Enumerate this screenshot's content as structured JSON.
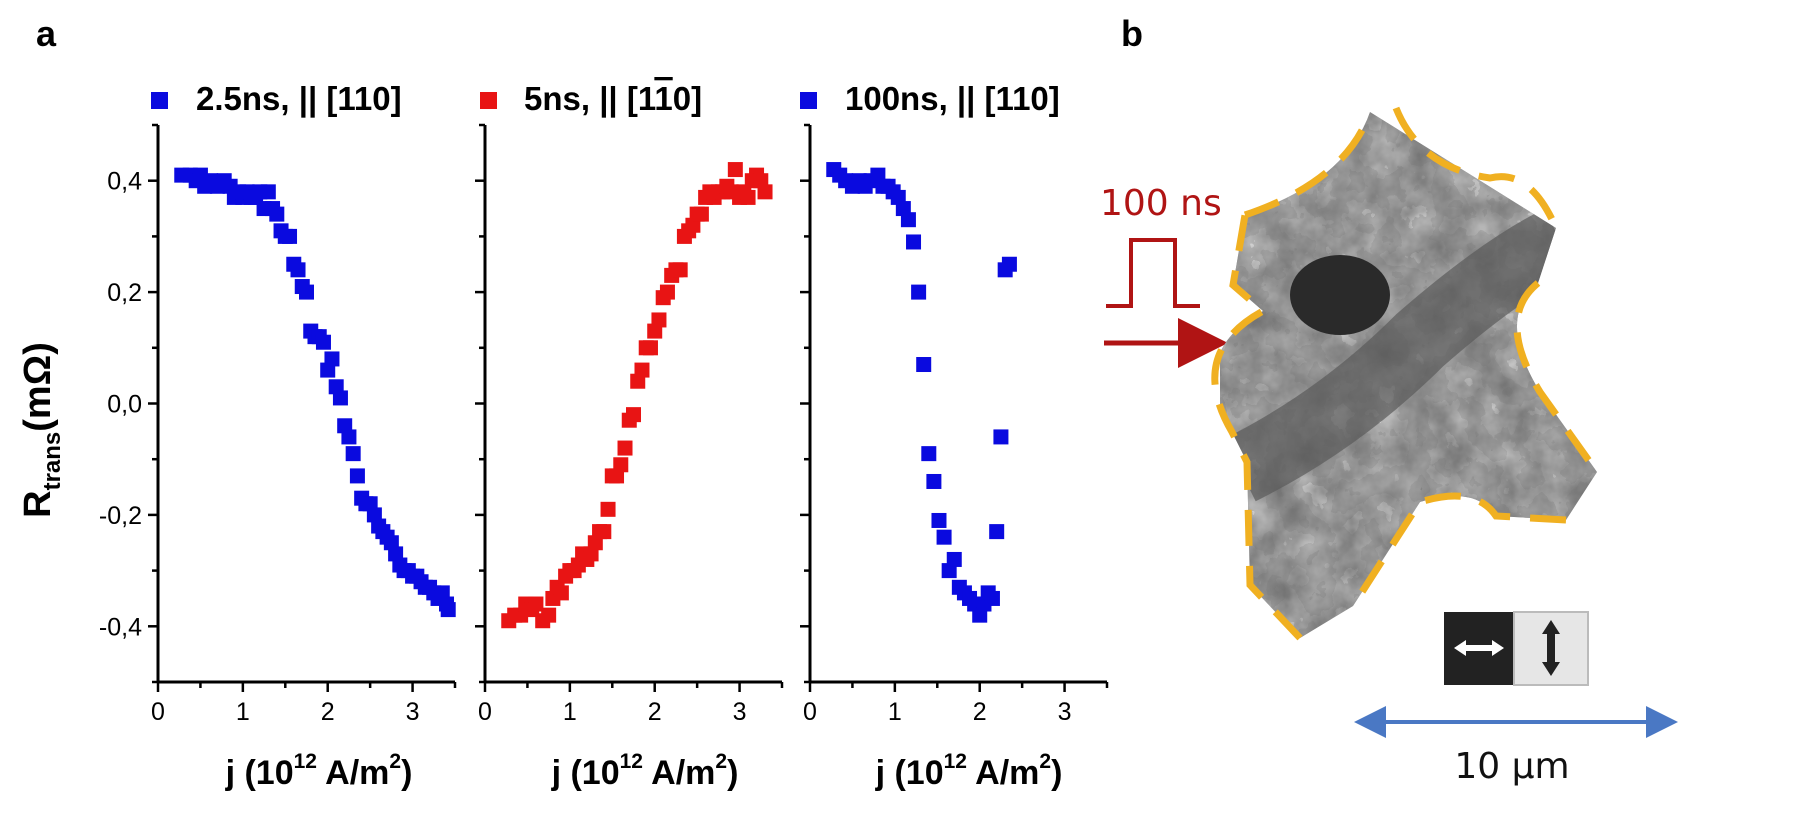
{
  "panel_a_label": "a",
  "panel_b_label": "b",
  "chart_data": {
    "type": "scatter",
    "ylabel": "R",
    "ylabel_subscript": "trans",
    "ylabel_unit": "(mΩ)",
    "ylim": [
      -0.5,
      0.5
    ],
    "yticks": [
      "0,4",
      "0,2",
      "0,0",
      "-0,2",
      "-0,4"
    ],
    "ytick_values": [
      0.4,
      0.2,
      0.0,
      -0.2,
      -0.4
    ],
    "xlim": [
      0,
      3.5
    ],
    "xticks": [
      "0",
      "1",
      "2",
      "3"
    ],
    "xtick_values": [
      0,
      1,
      2,
      3
    ],
    "grid": false,
    "panels": [
      {
        "name": "2.5ns, || [110]",
        "name_parts": [
          "2.5ns, || [110]"
        ],
        "color": "#0a0adf",
        "xlabel": {
          "a": "j (10",
          "sup": "12",
          "b": " A/m",
          "sup2": "2",
          "c": ")"
        },
        "x": [
          0.28,
          0.38,
          0.45,
          0.5,
          0.55,
          0.62,
          0.7,
          0.78,
          0.85,
          0.9,
          0.95,
          1.0,
          1.05,
          1.1,
          1.15,
          1.2,
          1.25,
          1.3,
          1.35,
          1.4,
          1.45,
          1.5,
          1.55,
          1.6,
          1.65,
          1.7,
          1.75,
          1.8,
          1.85,
          1.9,
          1.95,
          2.0,
          2.05,
          2.1,
          2.15,
          2.2,
          2.25,
          2.3,
          2.35,
          2.4,
          2.45,
          2.5,
          2.55,
          2.6,
          2.65,
          2.7,
          2.75,
          2.8,
          2.85,
          2.9,
          2.95,
          3.0,
          3.05,
          3.1,
          3.15,
          3.2,
          3.25,
          3.3,
          3.35,
          3.4,
          3.42
        ],
        "y": [
          0.41,
          0.41,
          0.4,
          0.41,
          0.39,
          0.4,
          0.39,
          0.4,
          0.39,
          0.37,
          0.38,
          0.37,
          0.38,
          0.37,
          0.37,
          0.38,
          0.35,
          0.38,
          0.35,
          0.34,
          0.31,
          0.3,
          0.3,
          0.25,
          0.24,
          0.21,
          0.2,
          0.13,
          0.12,
          0.12,
          0.11,
          0.06,
          0.08,
          0.03,
          0.01,
          -0.04,
          -0.06,
          -0.09,
          -0.13,
          -0.17,
          -0.18,
          -0.18,
          -0.2,
          -0.22,
          -0.23,
          -0.24,
          -0.25,
          -0.27,
          -0.29,
          -0.3,
          -0.3,
          -0.31,
          -0.31,
          -0.32,
          -0.33,
          -0.33,
          -0.34,
          -0.35,
          -0.34,
          -0.36,
          -0.37
        ]
      },
      {
        "name": "5ns, || [1",
        "name_bar": "1",
        "name_tail": "0]",
        "color": "#e81414",
        "xlabel": {
          "a": "j (10",
          "sup": "12",
          "b": " A/m",
          "sup2": "2",
          "c": ")"
        },
        "x": [
          0.28,
          0.35,
          0.42,
          0.48,
          0.55,
          0.6,
          0.68,
          0.75,
          0.8,
          0.85,
          0.9,
          0.95,
          1.0,
          1.05,
          1.1,
          1.15,
          1.2,
          1.25,
          1.3,
          1.35,
          1.4,
          1.45,
          1.5,
          1.55,
          1.6,
          1.65,
          1.7,
          1.75,
          1.8,
          1.85,
          1.9,
          1.95,
          2.0,
          2.05,
          2.1,
          2.15,
          2.2,
          2.25,
          2.3,
          2.35,
          2.4,
          2.45,
          2.5,
          2.55,
          2.6,
          2.65,
          2.7,
          2.75,
          2.8,
          2.85,
          2.9,
          2.95,
          3.0,
          3.05,
          3.1,
          3.15,
          3.2,
          3.25,
          3.3
        ],
        "y": [
          -0.39,
          -0.38,
          -0.38,
          -0.36,
          -0.37,
          -0.36,
          -0.39,
          -0.38,
          -0.35,
          -0.33,
          -0.34,
          -0.31,
          -0.3,
          -0.3,
          -0.29,
          -0.27,
          -0.28,
          -0.27,
          -0.25,
          -0.23,
          -0.23,
          -0.19,
          -0.13,
          -0.13,
          -0.11,
          -0.08,
          -0.03,
          -0.02,
          0.04,
          0.06,
          0.1,
          0.1,
          0.13,
          0.15,
          0.19,
          0.2,
          0.23,
          0.24,
          0.24,
          0.3,
          0.31,
          0.32,
          0.34,
          0.34,
          0.37,
          0.38,
          0.37,
          0.38,
          0.38,
          0.39,
          0.38,
          0.42,
          0.37,
          0.38,
          0.37,
          0.4,
          0.41,
          0.4,
          0.38
        ]
      },
      {
        "name": "100ns, || [110]",
        "name_parts": [
          "100ns, || [110]"
        ],
        "color": "#0a0adf",
        "xlabel": {
          "a": "j (10",
          "sup": "12",
          "b": " A/m",
          "sup2": "2",
          "c": ")"
        },
        "x": [
          0.28,
          0.35,
          0.42,
          0.5,
          0.58,
          0.65,
          0.72,
          0.8,
          0.86,
          0.92,
          0.98,
          1.04,
          1.1,
          1.16,
          1.22,
          1.28,
          1.34,
          1.4,
          1.46,
          1.52,
          1.58,
          1.64,
          1.7,
          1.76,
          1.82,
          1.88,
          1.94,
          2.0,
          2.05,
          2.1,
          2.15,
          2.2,
          2.25,
          2.3,
          2.35
        ],
        "y": [
          0.42,
          0.41,
          0.4,
          0.39,
          0.4,
          0.39,
          0.4,
          0.41,
          0.39,
          0.39,
          0.38,
          0.37,
          0.35,
          0.33,
          0.29,
          0.2,
          0.07,
          -0.09,
          -0.14,
          -0.21,
          -0.24,
          -0.3,
          -0.28,
          -0.33,
          -0.34,
          -0.35,
          -0.36,
          -0.38,
          -0.36,
          -0.34,
          -0.35,
          -0.23,
          -0.06,
          0.24,
          0.25
        ]
      }
    ]
  },
  "panel_b": {
    "pulse_label": "100 ns",
    "scale_label": "10 μm",
    "arrow_color": "#b01414",
    "scale_arrow_color": "#4a78c4",
    "outline_color": "#f0b021",
    "contrast_icons": [
      "horizontal-double-arrow-icon",
      "vertical-double-arrow-icon"
    ]
  }
}
